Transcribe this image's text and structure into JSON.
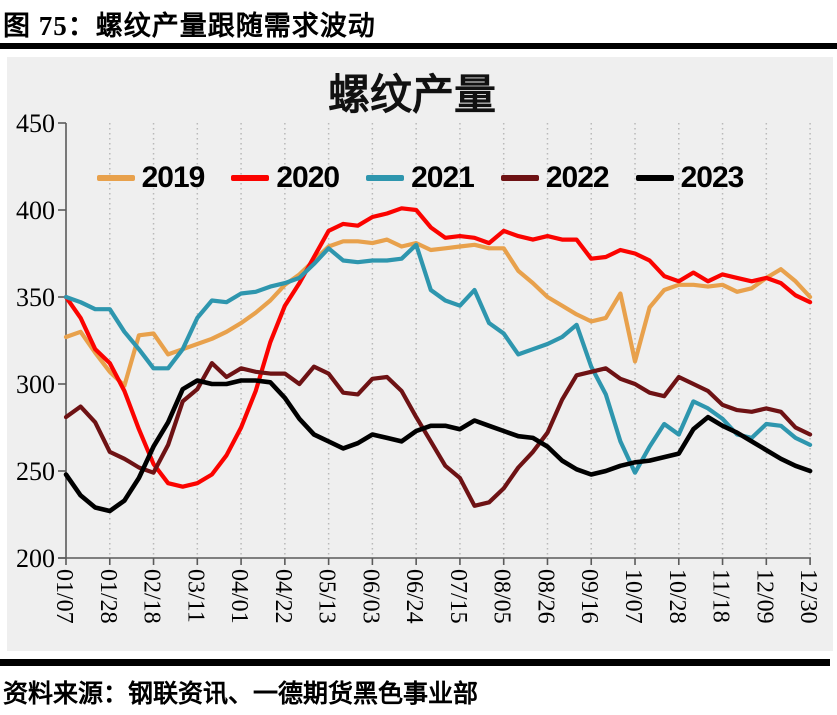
{
  "figure": {
    "caption": "图 75：螺纹产量跟随需求波动",
    "source": "资料来源：钢联资讯、一德期货黑色事业部"
  },
  "colors": {
    "page_bg": "#ffffff",
    "chart_bg": "#efefef",
    "grid": "#b9b9b9",
    "axis": "#5a5a5a",
    "text": "#000000"
  },
  "chart_data": {
    "type": "line",
    "title": "螺纹产量",
    "xlabel": "",
    "ylabel": "",
    "ylim": [
      200,
      450
    ],
    "y_ticks": [
      200,
      250,
      300,
      350,
      400,
      450
    ],
    "grid": "vertical dotted gridlines at every 3rd week",
    "legend_position": "top-center",
    "x_label_every": 3,
    "x": [
      "01/07",
      "01/14",
      "01/21",
      "01/28",
      "02/04",
      "02/11",
      "02/18",
      "02/25",
      "03/04",
      "03/11",
      "03/18",
      "03/25",
      "04/01",
      "04/08",
      "04/15",
      "04/22",
      "04/29",
      "05/06",
      "05/13",
      "05/20",
      "05/27",
      "06/03",
      "06/10",
      "06/17",
      "06/24",
      "07/01",
      "07/08",
      "07/15",
      "07/22",
      "07/29",
      "08/05",
      "08/12",
      "08/19",
      "08/26",
      "09/02",
      "09/09",
      "09/16",
      "09/23",
      "09/30",
      "10/07",
      "10/14",
      "10/21",
      "10/28",
      "11/04",
      "11/11",
      "11/18",
      "11/25",
      "12/02",
      "12/09",
      "12/16",
      "12/23",
      "12/30"
    ],
    "shown_x_tick_labels": [
      "01/07",
      "01/28",
      "02/18",
      "03/11",
      "04/01",
      "04/22",
      "05/13",
      "06/03",
      "06/24",
      "07/15",
      "08/05",
      "08/26",
      "09/16",
      "10/07",
      "10/28",
      "11/18",
      "12/09",
      "12/30"
    ],
    "series": [
      {
        "name": "2019",
        "color": "#e8a14c",
        "width": 4.2,
        "values": [
          327,
          330,
          318,
          307,
          299,
          328,
          329,
          317,
          320,
          323,
          326,
          330,
          335,
          341,
          348,
          357,
          363,
          371,
          379,
          382,
          382,
          381,
          383,
          379,
          381,
          377,
          378,
          379,
          380,
          378,
          378,
          365,
          358,
          350,
          345,
          340,
          336,
          338,
          352,
          313,
          344,
          354,
          357,
          357,
          356,
          357,
          353,
          355,
          361,
          366,
          359,
          350
        ]
      },
      {
        "name": "2020",
        "color": "#fb0300",
        "width": 4.2,
        "values": [
          350,
          338,
          320,
          312,
          296,
          274,
          254,
          243,
          241,
          243,
          248,
          259,
          275,
          296,
          324,
          345,
          358,
          373,
          388,
          392,
          391,
          396,
          398,
          401,
          400,
          390,
          384,
          385,
          384,
          381,
          388,
          385,
          383,
          385,
          383,
          383,
          372,
          373,
          377,
          375,
          371,
          362,
          359,
          364,
          359,
          363,
          361,
          359,
          361,
          358,
          351,
          347
        ]
      },
      {
        "name": "2021",
        "color": "#2e96ae",
        "width": 4.2,
        "values": [
          350,
          347,
          343,
          343,
          330,
          320,
          309,
          309,
          320,
          338,
          348,
          347,
          352,
          353,
          356,
          358,
          361,
          369,
          378,
          371,
          370,
          371,
          371,
          372,
          380,
          354,
          348,
          345,
          354,
          335,
          329,
          317,
          320,
          323,
          327,
          334,
          310,
          294,
          267,
          249,
          264,
          277,
          271,
          290,
          286,
          280,
          271,
          269,
          277,
          276,
          269,
          265
        ]
      },
      {
        "name": "2022",
        "color": "#6e1214",
        "width": 4.2,
        "values": [
          281,
          287,
          278,
          261,
          257,
          252,
          249,
          265,
          290,
          297,
          312,
          304,
          309,
          307,
          306,
          306,
          300,
          310,
          306,
          295,
          294,
          303,
          304,
          296,
          281,
          267,
          253,
          246,
          230,
          232,
          240,
          252,
          261,
          272,
          291,
          305,
          307,
          309,
          303,
          300,
          295,
          293,
          304,
          300,
          296,
          288,
          285,
          284,
          286,
          284,
          275,
          271
        ]
      },
      {
        "name": "2023",
        "color": "#000000",
        "width": 4.6,
        "values": [
          248,
          236,
          229,
          227,
          233,
          246,
          264,
          278,
          297,
          302,
          300,
          300,
          302,
          302,
          301,
          292,
          280,
          271,
          267,
          263,
          266,
          271,
          269,
          267,
          273,
          276,
          276,
          274,
          279,
          276,
          273,
          270,
          269,
          264,
          256,
          251,
          248,
          250,
          253,
          255,
          256,
          258,
          260,
          274,
          281,
          276,
          272,
          267,
          262,
          257,
          253,
          250
        ]
      }
    ]
  }
}
